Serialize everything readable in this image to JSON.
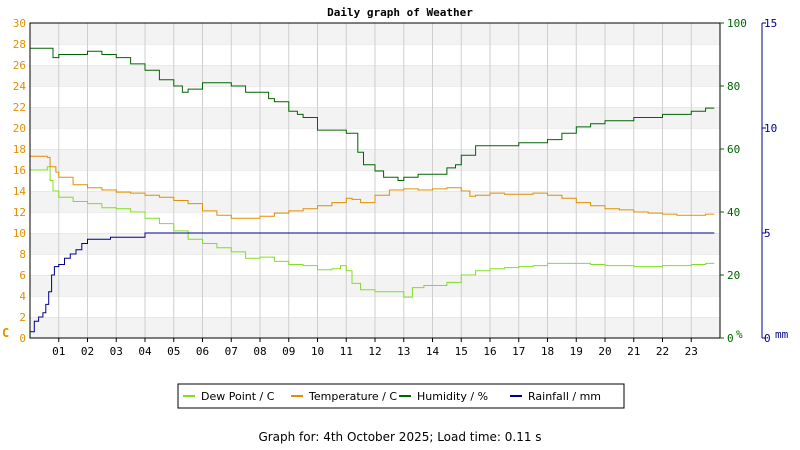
{
  "chart_data": {
    "type": "line",
    "title": "Daily graph of Weather",
    "x": {
      "tick_labels": [
        "01",
        "02",
        "03",
        "04",
        "05",
        "06",
        "07",
        "08",
        "09",
        "10",
        "11",
        "12",
        "13",
        "14",
        "15",
        "16",
        "17",
        "18",
        "19",
        "20",
        "21",
        "22",
        "23"
      ],
      "range_hours": [
        0,
        24
      ]
    },
    "y_left": {
      "unit_label": "C",
      "range": [
        0,
        30
      ],
      "ticks": [
        0,
        2,
        4,
        6,
        8,
        10,
        12,
        14,
        16,
        18,
        20,
        22,
        24,
        26,
        28,
        30
      ],
      "color": "#e09000"
    },
    "y_right_humidity": {
      "unit_label": "%",
      "range": [
        0,
        100
      ],
      "ticks": [
        0,
        20,
        40,
        60,
        80,
        100
      ],
      "color": "#006400"
    },
    "y_right_rain": {
      "unit_label": "mm",
      "range": [
        0,
        15
      ],
      "ticks": [
        0,
        5,
        10,
        15
      ],
      "color": "#00008b"
    },
    "grid": true,
    "legend_position": "bottom",
    "series": [
      {
        "name": "Dew Point / C",
        "axis": "left",
        "color": "#80e020",
        "x": [
          0.0,
          0.6,
          0.7,
          0.8,
          1.0,
          1.5,
          2.0,
          2.5,
          3.0,
          3.5,
          4.0,
          4.5,
          5.0,
          5.5,
          6.0,
          6.5,
          7.0,
          7.5,
          8.0,
          8.5,
          9.0,
          9.5,
          10.0,
          10.5,
          10.8,
          11.0,
          11.2,
          11.5,
          12.0,
          12.5,
          13.0,
          13.3,
          13.7,
          14.0,
          14.5,
          14.8,
          15.0,
          15.5,
          16.0,
          16.5,
          17.0,
          17.5,
          18.0,
          18.5,
          19.0,
          19.5,
          20.0,
          20.5,
          21.0,
          21.5,
          22.0,
          22.5,
          23.0,
          23.5,
          23.8
        ],
        "y": [
          16.0,
          16.3,
          15.0,
          14.0,
          13.4,
          13.0,
          12.8,
          12.4,
          12.3,
          12.0,
          11.4,
          10.9,
          10.2,
          9.4,
          9.0,
          8.6,
          8.2,
          7.6,
          7.7,
          7.3,
          7.0,
          6.9,
          6.5,
          6.6,
          6.9,
          6.4,
          5.2,
          4.6,
          4.4,
          4.4,
          3.9,
          4.8,
          5.0,
          5.0,
          5.3,
          5.3,
          6.0,
          6.4,
          6.6,
          6.7,
          6.8,
          6.9,
          7.1,
          7.1,
          7.1,
          7.0,
          6.9,
          6.9,
          6.8,
          6.8,
          6.9,
          6.9,
          7.0,
          7.1,
          7.1
        ]
      },
      {
        "name": "Temperature / C",
        "axis": "left",
        "color": "#e09000",
        "x": [
          0.0,
          0.6,
          0.7,
          0.9,
          1.0,
          1.5,
          2.0,
          2.5,
          3.0,
          3.5,
          4.0,
          4.5,
          5.0,
          5.5,
          6.0,
          6.5,
          7.0,
          7.5,
          8.0,
          8.5,
          9.0,
          9.5,
          10.0,
          10.5,
          11.0,
          11.2,
          11.5,
          12.0,
          12.5,
          13.0,
          13.5,
          14.0,
          14.5,
          15.0,
          15.3,
          15.5,
          16.0,
          16.5,
          17.0,
          17.5,
          18.0,
          18.5,
          19.0,
          19.5,
          20.0,
          20.5,
          21.0,
          21.5,
          22.0,
          22.5,
          23.0,
          23.5,
          23.8
        ],
        "y": [
          17.3,
          17.2,
          16.3,
          15.8,
          15.3,
          14.6,
          14.3,
          14.1,
          13.9,
          13.8,
          13.6,
          13.4,
          13.1,
          12.8,
          12.1,
          11.7,
          11.4,
          11.4,
          11.6,
          11.9,
          12.1,
          12.3,
          12.6,
          12.9,
          13.3,
          13.2,
          12.9,
          13.6,
          14.1,
          14.2,
          14.1,
          14.2,
          14.3,
          14.0,
          13.5,
          13.6,
          13.8,
          13.7,
          13.7,
          13.8,
          13.6,
          13.3,
          12.9,
          12.6,
          12.3,
          12.2,
          12.0,
          11.9,
          11.8,
          11.7,
          11.7,
          11.8,
          11.8
        ]
      },
      {
        "name": "Humidity / %",
        "axis": "right_humidity",
        "color": "#006400",
        "x": [
          0.0,
          0.3,
          0.6,
          0.8,
          1.0,
          1.5,
          2.0,
          2.5,
          3.0,
          3.5,
          4.0,
          4.5,
          5.0,
          5.3,
          5.5,
          6.0,
          6.5,
          7.0,
          7.5,
          8.0,
          8.3,
          8.5,
          9.0,
          9.3,
          9.5,
          10.0,
          10.5,
          11.0,
          11.2,
          11.4,
          11.6,
          12.0,
          12.3,
          12.5,
          12.8,
          13.0,
          13.5,
          14.0,
          14.5,
          14.8,
          15.0,
          15.5,
          16.0,
          16.5,
          17.0,
          17.5,
          18.0,
          18.5,
          19.0,
          19.5,
          20.0,
          20.5,
          21.0,
          21.5,
          22.0,
          22.5,
          23.0,
          23.5,
          23.8
        ],
        "y": [
          92,
          92,
          92,
          89,
          90,
          90,
          91,
          90,
          89,
          87,
          85,
          82,
          80,
          78,
          79,
          81,
          81,
          80,
          78,
          78,
          76,
          75,
          72,
          71,
          70,
          66,
          66,
          65,
          65,
          59,
          55,
          53,
          51,
          51,
          50,
          51,
          52,
          52,
          54,
          55,
          58,
          61,
          61,
          61,
          62,
          62,
          63,
          65,
          67,
          68,
          69,
          69,
          70,
          70,
          71,
          71,
          72,
          73,
          73
        ]
      },
      {
        "name": "Rainfall / mm",
        "axis": "right_rain",
        "color": "#00008b",
        "x": [
          0.0,
          0.15,
          0.3,
          0.45,
          0.55,
          0.65,
          0.75,
          0.85,
          1.0,
          1.2,
          1.4,
          1.6,
          1.8,
          2.0,
          2.5,
          2.8,
          3.5,
          4.0,
          4.5,
          5.0,
          10.0,
          15.0,
          20.0,
          23.8
        ],
        "y": [
          0.3,
          0.8,
          1.0,
          1.2,
          1.6,
          2.2,
          3.0,
          3.4,
          3.5,
          3.8,
          4.0,
          4.2,
          4.5,
          4.7,
          4.7,
          4.8,
          4.8,
          5.0,
          5.0,
          5.0,
          5.0,
          5.0,
          5.0,
          5.0
        ]
      }
    ]
  },
  "footer": {
    "text": "Graph for: 4th October 2025; Load time: 0.11 s"
  }
}
